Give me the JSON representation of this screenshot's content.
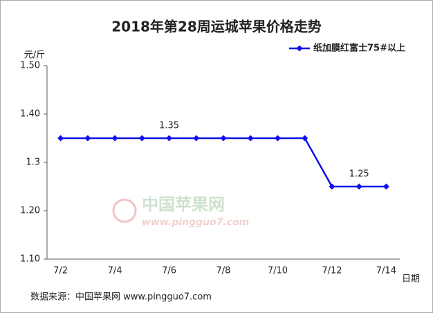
{
  "chart_data": {
    "type": "line",
    "title": "2018年第28周运城苹果价格走势",
    "y_label": "元/斤",
    "x_label": "日期",
    "categories": [
      "7/2",
      null,
      "7/4",
      null,
      "7/6",
      null,
      "7/8",
      null,
      "7/10",
      null,
      "7/12",
      null,
      "7/14"
    ],
    "series": [
      {
        "name": "纸加膜红富士75#以上",
        "color": "#1010ee",
        "values": [
          1.35,
          1.35,
          1.35,
          1.35,
          1.35,
          1.35,
          1.35,
          1.35,
          1.35,
          1.35,
          1.25,
          1.25,
          1.25
        ],
        "value_labels": [
          null,
          null,
          null,
          null,
          "1.35",
          null,
          null,
          null,
          null,
          null,
          null,
          "1.25",
          null
        ]
      }
    ],
    "ylim": [
      1.1,
      1.5
    ],
    "yticks": [
      {
        "value": 1.1,
        "label": "1.10"
      },
      {
        "value": 1.2,
        "label": "1.20"
      },
      1.3,
      {
        "value": 1.4,
        "label": "1.40"
      },
      {
        "value": 1.5,
        "label": "1.50"
      }
    ],
    "grid": false,
    "legend": "top-right",
    "watermark": {
      "name": "中国苹果网",
      "url": "www.pingguo7.com"
    },
    "source": "数据来源：中国苹果网 www.pingguo7.com"
  }
}
